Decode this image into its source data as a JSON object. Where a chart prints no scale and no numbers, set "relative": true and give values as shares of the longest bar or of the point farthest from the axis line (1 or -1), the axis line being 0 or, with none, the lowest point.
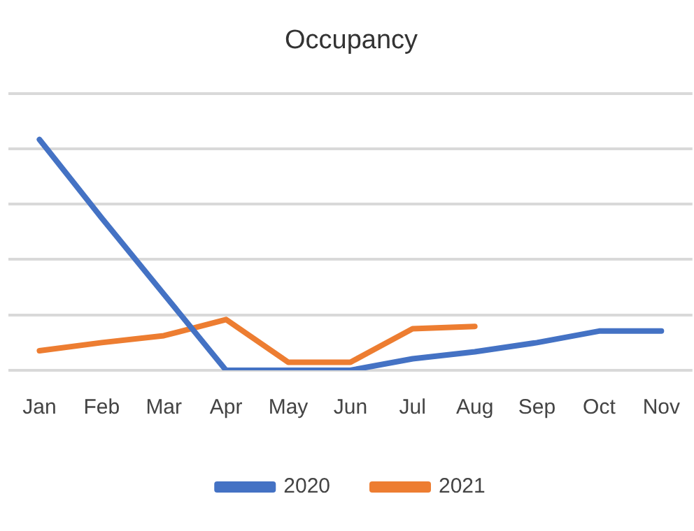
{
  "chart_data": {
    "type": "line",
    "title": "Occupancy",
    "relative": true,
    "grid": "y",
    "legend": "bottom",
    "marker": "none",
    "line_style": "solid",
    "categories": [
      "Jan",
      "Feb",
      "Mar",
      "Apr",
      "May",
      "Jun",
      "Jul",
      "Aug",
      "Sep",
      "Oct",
      "Nov"
    ],
    "series": [
      {
        "name": "2020",
        "color": "#4472c4",
        "values": [
          1,
          0.66,
          0.33,
          0,
          0,
          0,
          0.05,
          0.08,
          0.12,
          0.17,
          0.17
        ]
      },
      {
        "name": "2021",
        "color": "#ed7d31",
        "values": [
          0.085,
          0.12,
          0.15,
          0.22,
          0.035,
          0.035,
          0.18,
          0.19,
          null,
          null,
          null
        ]
      }
    ]
  }
}
